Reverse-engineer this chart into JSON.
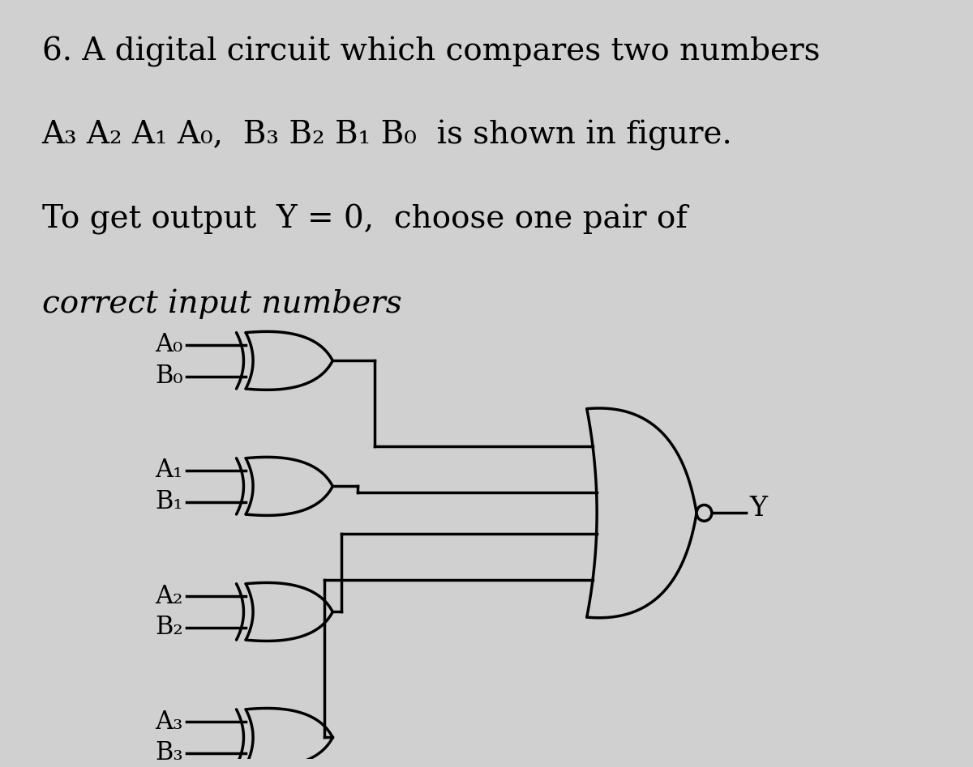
{
  "bg_color": "#d0d0d0",
  "line_color": "#000000",
  "lw": 2.5,
  "title_lines": [
    {
      "text": "6. A digital circuit which compares two numbers",
      "italic": false,
      "bold": false
    },
    {
      "text": "A₃ A₂ A₁ A₀,  B₃ B₂ B₁ B₀  is shown in figure.",
      "italic": false,
      "bold": false
    },
    {
      "text": "To get output  Y = 0,  choose one pair of",
      "italic": false,
      "bold": false
    },
    {
      "text": "correct input numbers",
      "italic": true,
      "bold": false
    }
  ],
  "title_fontsize": 28,
  "gate_labels": [
    [
      "A₀",
      "B₀"
    ],
    [
      "A₁",
      "B₁"
    ],
    [
      "A₂",
      "B₂"
    ],
    [
      "A₃",
      "B₃"
    ]
  ],
  "output_label": "Y",
  "output_label_fontsize": 24,
  "input_label_fontsize": 22
}
